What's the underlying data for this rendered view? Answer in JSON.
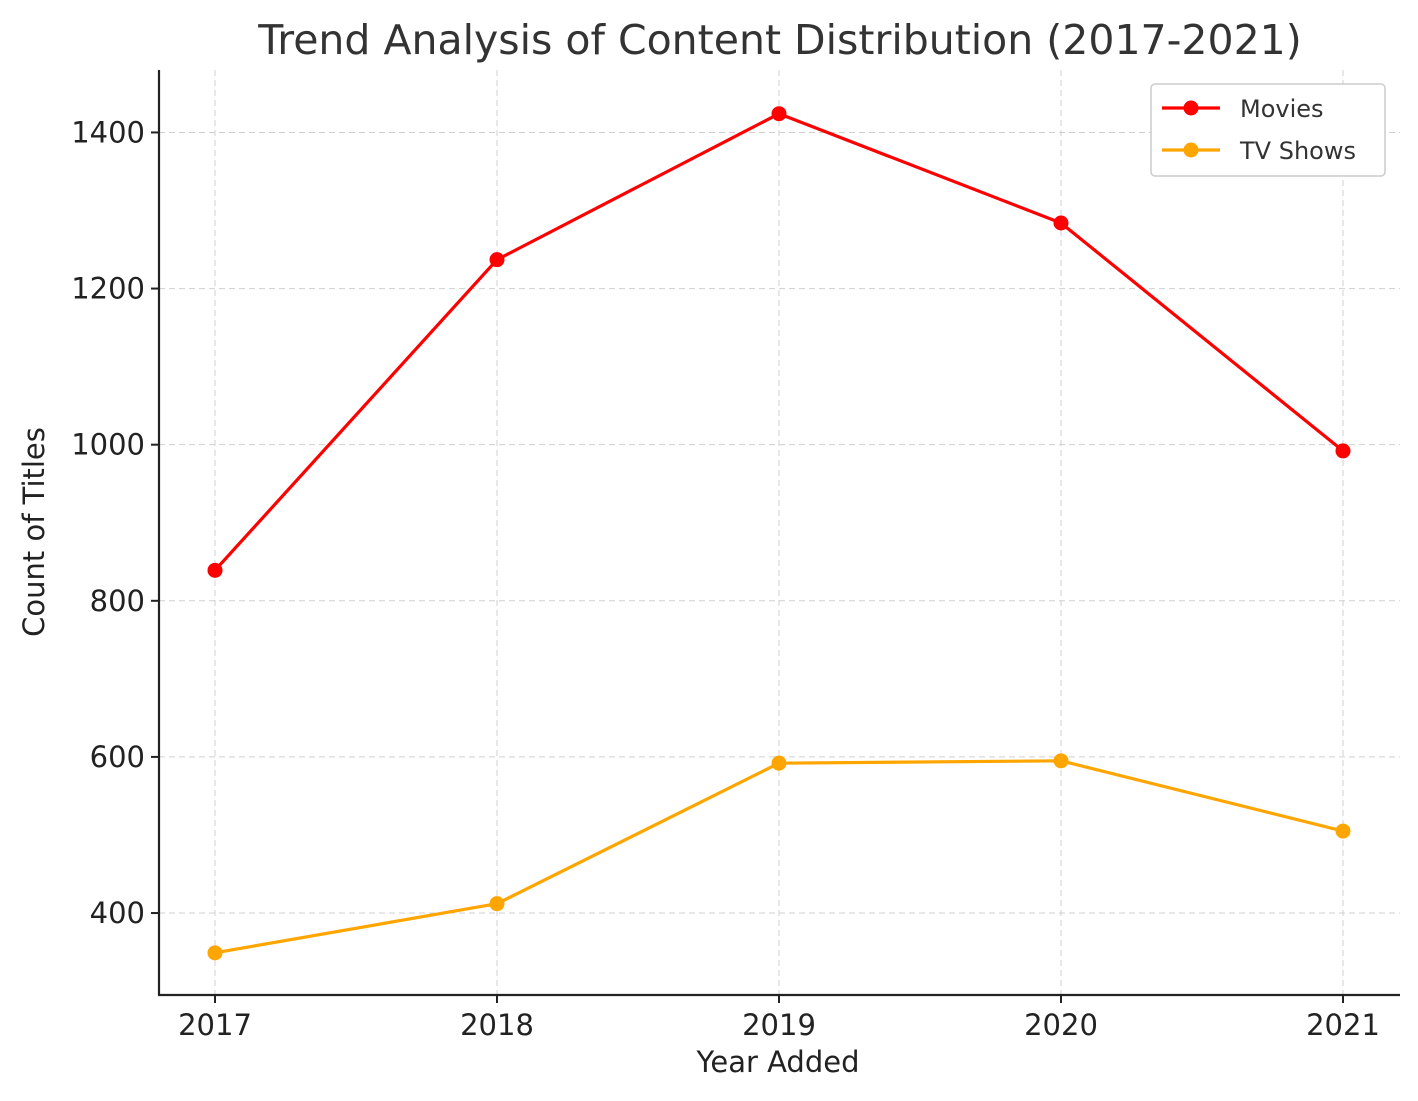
{
  "chart_data": {
    "type": "line",
    "title": "Trend Analysis of Content Distribution (2017-2021)",
    "xlabel": "Year Added",
    "ylabel": "Count of Titles",
    "x": [
      "2017",
      "2018",
      "2019",
      "2020",
      "2021"
    ],
    "yticks": [
      400,
      600,
      800,
      1000,
      1200,
      1400
    ],
    "ylim": [
      295,
      1480
    ],
    "grid": true,
    "legend_position": "top-right",
    "series": [
      {
        "name": "Movies",
        "color": "#ff0000",
        "values": [
          839,
          1237,
          1424,
          1284,
          992
        ]
      },
      {
        "name": "TV Shows",
        "color": "#ffa500",
        "values": [
          349,
          412,
          592,
          595,
          505
        ]
      }
    ]
  }
}
